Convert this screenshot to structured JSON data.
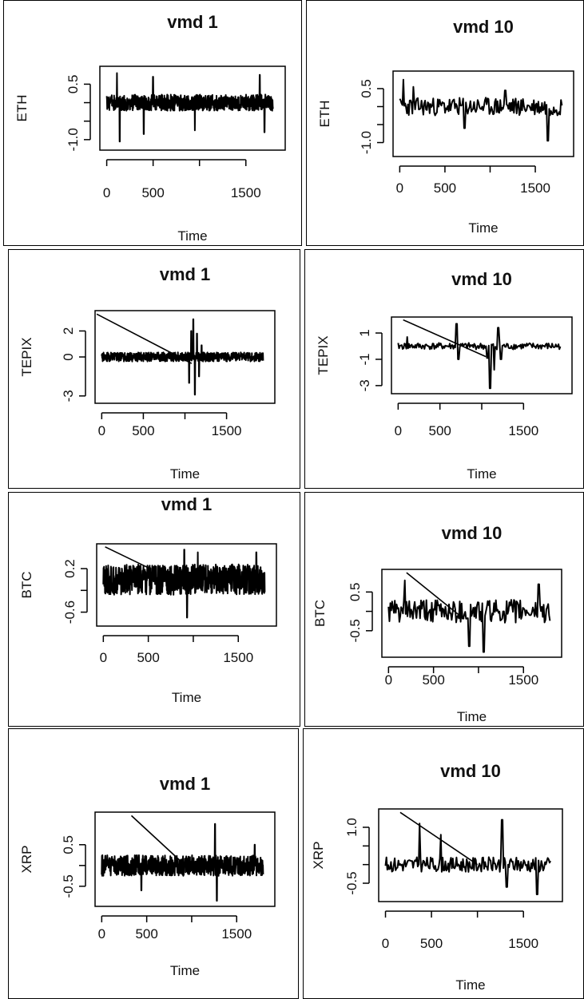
{
  "chart_data": [
    {
      "type": "line",
      "title": "vmd 1",
      "xlabel": "Time",
      "ylabel": "ETH",
      "xlim": [
        0,
        1850
      ],
      "ylim": [
        -1.2,
        0.9
      ],
      "xticks": [
        0,
        500,
        1500
      ],
      "xtick_labels": [
        "0",
        "500",
        "1500"
      ],
      "xticks_minor": [
        1000
      ],
      "yticks": [
        -1.0,
        0.5
      ],
      "ytick_labels": [
        "-1.0",
        "0.5"
      ],
      "yticks_minor": [
        -0.5,
        0.0
      ],
      "series": [
        {
          "kind": "noise",
          "base": 0,
          "amp": 0.22,
          "spikes": [
            [
              110,
              0.8
            ],
            [
              140,
              -1.05
            ],
            [
              400,
              -0.85
            ],
            [
              500,
              0.7
            ],
            [
              950,
              -0.75
            ],
            [
              1650,
              0.75
            ],
            [
              1700,
              -0.8
            ]
          ],
          "freq": 7,
          "seed": 11
        }
      ],
      "diagonal": null
    },
    {
      "type": "line",
      "title": "vmd 10",
      "xlabel": "Time",
      "ylabel": "ETH",
      "xlim": [
        0,
        1850
      ],
      "ylim": [
        -1.3,
        0.9
      ],
      "xticks": [
        0,
        500,
        1500
      ],
      "xtick_labels": [
        "0",
        "500",
        "1500"
      ],
      "xticks_minor": [
        1000
      ],
      "yticks": [
        -1.0,
        0.5
      ],
      "ytick_labels": [
        "-1.0",
        "0.5"
      ],
      "yticks_minor": [
        -0.5,
        0.0
      ],
      "series": [
        {
          "kind": "noise",
          "base": 0,
          "amp": 0.25,
          "spikes": [
            [
              40,
              0.75
            ],
            [
              150,
              0.55
            ],
            [
              720,
              -0.6
            ],
            [
              1640,
              -0.95
            ],
            [
              1170,
              0.45
            ]
          ],
          "freq": 1.5,
          "seed": 23
        }
      ],
      "diagonal": null
    },
    {
      "type": "line",
      "title": "vmd 1",
      "xlabel": "Time",
      "ylabel": "TEPIX",
      "xlim": [
        0,
        2000
      ],
      "ylim": [
        -3.3,
        3.3
      ],
      "xticks": [
        0,
        500,
        1500
      ],
      "xtick_labels": [
        "0",
        "500",
        "1500"
      ],
      "xticks_minor": [
        1000
      ],
      "yticks": [
        -3,
        0,
        2
      ],
      "ytick_labels": [
        "-3",
        "0",
        "2"
      ],
      "yticks_minor": [],
      "series": [
        {
          "kind": "noise",
          "base": 0,
          "amp": 0.35,
          "spikes": [
            [
              1050,
              -2.0
            ],
            [
              1075,
              2.0
            ],
            [
              1100,
              2.9
            ],
            [
              1120,
              -2.9
            ],
            [
              1145,
              1.8
            ],
            [
              1170,
              -1.5
            ],
            [
              1200,
              0.9
            ]
          ],
          "freq": 6,
          "seed": 31
        }
      ],
      "diagonal": [
        [
          -60,
          3.3
        ],
        [
          1080,
          -0.5
        ]
      ]
    },
    {
      "type": "line",
      "title": "vmd 10",
      "xlabel": "Time",
      "ylabel": "TEPIX",
      "xlim": [
        0,
        2000
      ],
      "ylim": [
        -3.4,
        2.0
      ],
      "xticks": [
        0,
        500,
        1500
      ],
      "xtick_labels": [
        "0",
        "500",
        "1500"
      ],
      "xticks_minor": [
        1000
      ],
      "yticks": [
        -3,
        -1,
        1
      ],
      "ytick_labels": [
        "-3",
        "-1",
        "1"
      ],
      "yticks_minor": [],
      "series": [
        {
          "kind": "noise",
          "base": 0,
          "amp": 0.25,
          "spikes": [
            [
              110,
              0.7
            ],
            [
              700,
              1.7
            ],
            [
              720,
              -1.0
            ],
            [
              1070,
              -0.9
            ],
            [
              1100,
              -3.2
            ],
            [
              1150,
              -1.8
            ],
            [
              1200,
              1.4
            ],
            [
              1230,
              -1.0
            ]
          ],
          "freq": 2,
          "seed": 41
        }
      ],
      "diagonal": [
        [
          60,
          2.0
        ],
        [
          1050,
          -0.8
        ]
      ]
    },
    {
      "type": "line",
      "title": "vmd 1",
      "xlabel": "Time",
      "ylabel": "BTC",
      "xlim": [
        0,
        1850
      ],
      "ylim": [
        -0.8,
        0.6
      ],
      "xticks": [
        0,
        500,
        1500
      ],
      "xtick_labels": [
        "0",
        "500",
        "1500"
      ],
      "xticks_minor": [
        1000
      ],
      "yticks": [
        -0.6,
        0.2
      ],
      "ytick_labels": [
        "-0.6",
        "0.2"
      ],
      "yticks_minor": [
        -0.2
      ],
      "series": [
        {
          "kind": "noise",
          "base": 0,
          "amp": 0.28,
          "spikes": [
            [
              900,
              0.55
            ],
            [
              930,
              -0.7
            ],
            [
              1050,
              0.5
            ],
            [
              1700,
              0.5
            ]
          ],
          "freq": 7,
          "seed": 51
        }
      ],
      "diagonal": [
        [
          20,
          0.6
        ],
        [
          520,
          0.2
        ]
      ]
    },
    {
      "type": "line",
      "title": "vmd 10",
      "xlabel": "Time",
      "ylabel": "BTC",
      "xlim": [
        0,
        1850
      ],
      "ylim": [
        -1.1,
        1.0
      ],
      "xticks": [
        0,
        500,
        1500
      ],
      "xtick_labels": [
        "0",
        "500",
        "1500"
      ],
      "xticks_minor": [
        1000
      ],
      "yticks": [
        -0.5,
        0.5
      ],
      "ytick_labels": [
        "-0.5",
        "0.5"
      ],
      "yticks_minor": [
        0
      ],
      "series": [
        {
          "kind": "noise",
          "base": 0,
          "amp": 0.3,
          "spikes": [
            [
              180,
              0.8
            ],
            [
              900,
              -0.9
            ],
            [
              1060,
              -1.05
            ],
            [
              1670,
              0.7
            ]
          ],
          "freq": 1.5,
          "seed": 61
        }
      ],
      "diagonal": [
        [
          200,
          1.0
        ],
        [
          840,
          -0.2
        ]
      ]
    },
    {
      "type": "line",
      "title": "vmd 1",
      "xlabel": "Time",
      "ylabel": "XRP",
      "xlim": [
        0,
        1850
      ],
      "ylim": [
        -0.9,
        1.2
      ],
      "xticks": [
        0,
        500,
        1500
      ],
      "xtick_labels": [
        "0",
        "500",
        "1500"
      ],
      "xticks_minor": [
        1000
      ],
      "yticks": [
        -0.5,
        0.5
      ],
      "ytick_labels": [
        "-0.5",
        "0.5"
      ],
      "yticks_minor": [
        0
      ],
      "series": [
        {
          "kind": "noise",
          "base": 0,
          "amp": 0.25,
          "spikes": [
            [
              1260,
              1.0
            ],
            [
              1280,
              -0.85
            ],
            [
              440,
              -0.6
            ],
            [
              1700,
              0.5
            ]
          ],
          "freq": 6,
          "seed": 71
        }
      ],
      "diagonal": [
        [
          330,
          1.2
        ],
        [
          880,
          0.1
        ]
      ]
    },
    {
      "type": "line",
      "title": "vmd 10",
      "xlabel": "Time",
      "ylabel": "XRP",
      "xlim": [
        0,
        1850
      ],
      "ylim": [
        -0.9,
        1.4
      ],
      "xticks": [
        0,
        500,
        1500
      ],
      "xtick_labels": [
        "0",
        "500",
        "1500"
      ],
      "xticks_minor": [
        1000
      ],
      "yticks": [
        -0.5,
        1.0
      ],
      "ytick_labels": [
        "-0.5",
        "1.0"
      ],
      "yticks_minor": [
        0,
        0.5
      ],
      "series": [
        {
          "kind": "noise",
          "base": 0,
          "amp": 0.2,
          "spikes": [
            [
              370,
              1.1
            ],
            [
              600,
              0.8
            ],
            [
              1270,
              1.2
            ],
            [
              1650,
              -0.8
            ],
            [
              1320,
              -0.6
            ]
          ],
          "freq": 1.5,
          "seed": 81
        }
      ],
      "diagonal": [
        [
          160,
          1.4
        ],
        [
          1000,
          0.0
        ]
      ]
    }
  ]
}
